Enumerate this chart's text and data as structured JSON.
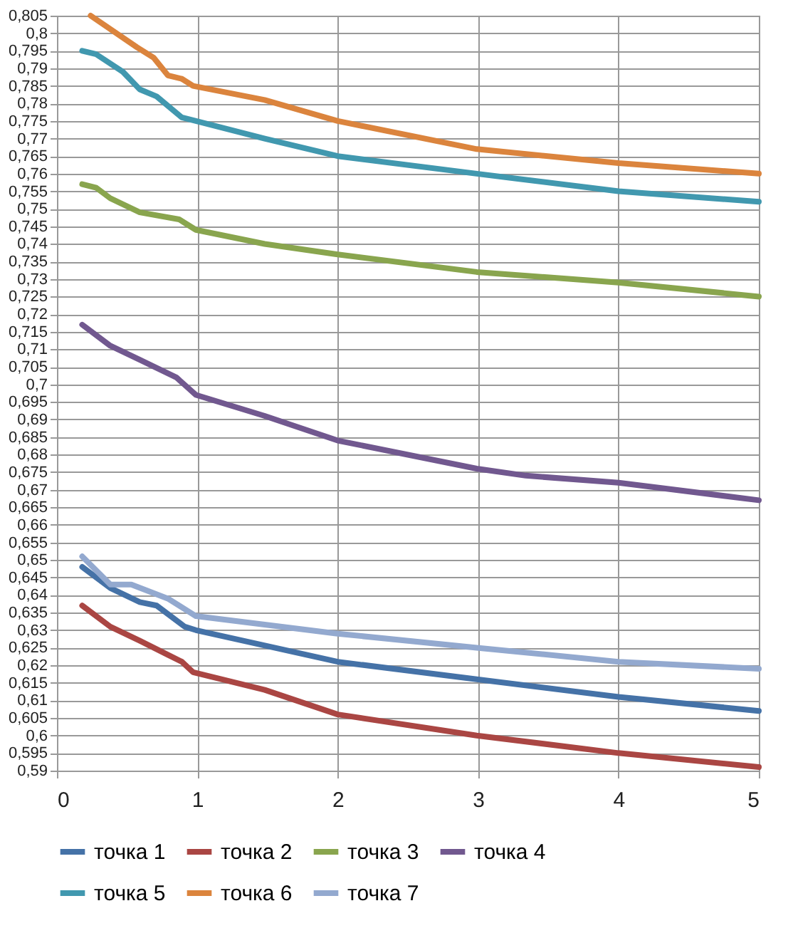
{
  "chart_data": {
    "type": "line",
    "xlim": [
      0,
      5
    ],
    "xticks": [
      0,
      1,
      2,
      3,
      4,
      5
    ],
    "ylim": [
      0.59,
      0.805
    ],
    "yticks": [
      {
        "value": 0.59,
        "label": "0,59"
      },
      {
        "value": 0.595,
        "label": "0,595"
      },
      {
        "value": 0.6,
        "label": "0,6"
      },
      {
        "value": 0.605,
        "label": "0,605"
      },
      {
        "value": 0.61,
        "label": "0,61"
      },
      {
        "value": 0.615,
        "label": "0,615"
      },
      {
        "value": 0.62,
        "label": "0,62"
      },
      {
        "value": 0.625,
        "label": "0,625"
      },
      {
        "value": 0.63,
        "label": "0,63"
      },
      {
        "value": 0.635,
        "label": "0,635"
      },
      {
        "value": 0.64,
        "label": "0,64"
      },
      {
        "value": 0.645,
        "label": "0,645"
      },
      {
        "value": 0.65,
        "label": "0,65"
      },
      {
        "value": 0.655,
        "label": "0,655"
      },
      {
        "value": 0.66,
        "label": "0,66"
      },
      {
        "value": 0.665,
        "label": "0,665"
      },
      {
        "value": 0.67,
        "label": "0,67"
      },
      {
        "value": 0.675,
        "label": "0,675"
      },
      {
        "value": 0.68,
        "label": "0,68"
      },
      {
        "value": 0.685,
        "label": "0,685"
      },
      {
        "value": 0.69,
        "label": "0,69"
      },
      {
        "value": 0.695,
        "label": "0,695"
      },
      {
        "value": 0.7,
        "label": "0,7"
      },
      {
        "value": 0.705,
        "label": "0,705"
      },
      {
        "value": 0.71,
        "label": "0,71"
      },
      {
        "value": 0.715,
        "label": "0,715"
      },
      {
        "value": 0.72,
        "label": "0,72"
      },
      {
        "value": 0.725,
        "label": "0,725"
      },
      {
        "value": 0.73,
        "label": "0,73"
      },
      {
        "value": 0.735,
        "label": "0,735"
      },
      {
        "value": 0.74,
        "label": "0,74"
      },
      {
        "value": 0.745,
        "label": "0,745"
      },
      {
        "value": 0.75,
        "label": "0,75"
      },
      {
        "value": 0.755,
        "label": "0,755"
      },
      {
        "value": 0.76,
        "label": "0,76"
      },
      {
        "value": 0.765,
        "label": "0,765"
      },
      {
        "value": 0.77,
        "label": "0,77"
      },
      {
        "value": 0.775,
        "label": "0,775"
      },
      {
        "value": 0.78,
        "label": "0,78"
      },
      {
        "value": 0.785,
        "label": "0,785"
      },
      {
        "value": 0.79,
        "label": "0,79"
      },
      {
        "value": 0.795,
        "label": "0,795"
      },
      {
        "value": 0.8,
        "label": "0,8"
      },
      {
        "value": 0.805,
        "label": "0,805"
      }
    ],
    "grid": true,
    "legend": "bottom",
    "marker": "none",
    "line_style": "solid",
    "series": [
      {
        "name": "точка 1",
        "color": "#4572a7",
        "x": [
          0.18,
          0.38,
          0.59,
          0.71,
          0.91,
          0.99,
          2,
          2.99,
          4,
          5
        ],
        "values": [
          0.648,
          0.642,
          0.638,
          0.637,
          0.631,
          0.63,
          0.621,
          0.616,
          0.611,
          0.607
        ]
      },
      {
        "name": "точка 2",
        "color": "#aa4643",
        "x": [
          0.18,
          0.38,
          0.59,
          0.79,
          0.89,
          0.97,
          1.48,
          2,
          2.99,
          4,
          5
        ],
        "values": [
          0.637,
          0.631,
          0.627,
          0.623,
          0.621,
          0.618,
          0.613,
          0.606,
          0.6,
          0.595,
          0.591
        ]
      },
      {
        "name": "точка 3",
        "color": "#89a54e",
        "x": [
          0.18,
          0.28,
          0.38,
          0.59,
          0.87,
          0.99,
          1.48,
          2,
          2.99,
          4,
          5
        ],
        "values": [
          0.757,
          0.756,
          0.753,
          0.749,
          0.747,
          0.744,
          0.74,
          0.737,
          0.732,
          0.729,
          0.725
        ]
      },
      {
        "name": "точка 4",
        "color": "#71588f",
        "x": [
          0.18,
          0.38,
          0.59,
          0.85,
          0.99,
          1.48,
          2,
          2.99,
          3.34,
          4,
          5
        ],
        "values": [
          0.717,
          0.711,
          0.707,
          0.702,
          0.697,
          0.691,
          0.684,
          0.676,
          0.674,
          0.672,
          0.667
        ]
      },
      {
        "name": "точка 5",
        "color": "#4198af",
        "x": [
          0.18,
          0.28,
          0.47,
          0.59,
          0.71,
          0.89,
          0.99,
          1.48,
          2,
          2.99,
          4,
          5
        ],
        "values": [
          0.795,
          0.794,
          0.789,
          0.784,
          0.782,
          0.776,
          0.775,
          0.77,
          0.765,
          0.76,
          0.755,
          0.752
        ]
      },
      {
        "name": "точка 6",
        "color": "#db843d",
        "x": [
          0.24,
          0.57,
          0.69,
          0.79,
          0.89,
          0.97,
          1.48,
          2,
          2.99,
          4,
          5
        ],
        "values": [
          0.805,
          0.796,
          0.793,
          0.788,
          0.787,
          0.785,
          0.781,
          0.775,
          0.767,
          0.763,
          0.76
        ]
      },
      {
        "name": "точка 7",
        "color": "#93a9cf",
        "x": [
          0.18,
          0.38,
          0.53,
          0.79,
          0.99,
          2,
          2.99,
          4,
          5
        ],
        "values": [
          0.651,
          0.643,
          0.643,
          0.639,
          0.634,
          0.629,
          0.625,
          0.621,
          0.619
        ]
      }
    ]
  }
}
